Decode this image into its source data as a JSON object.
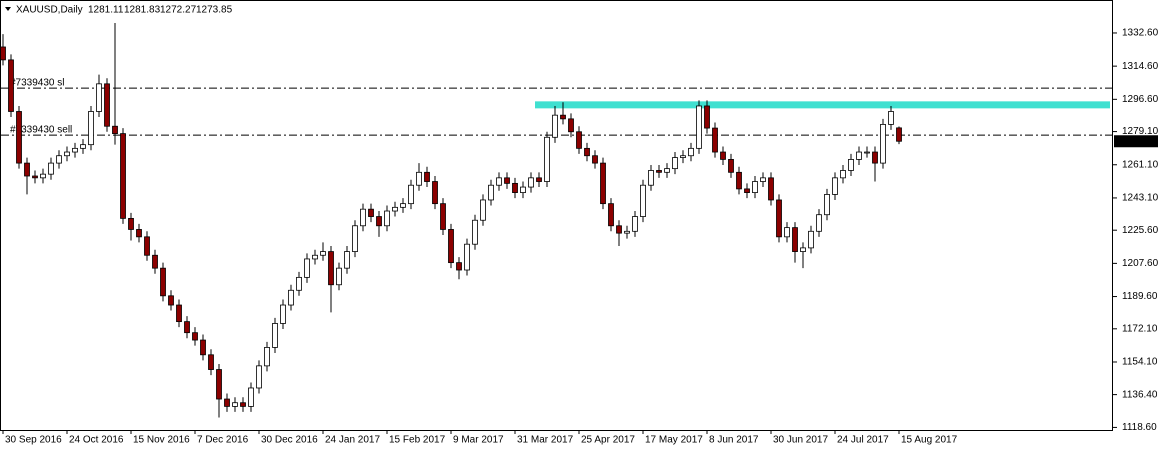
{
  "chart_data": {
    "type": "candlestick",
    "symbol": "XAUUSD,Daily",
    "open": [
      1325,
      1318,
      1290,
      1262,
      1255,
      1254,
      1256,
      1262,
      1266,
      1268,
      1270,
      1272,
      1290,
      1305,
      1282,
      1278,
      1232,
      1226,
      1222,
      1212,
      1205,
      1190,
      1185,
      1176,
      1170,
      1166,
      1158,
      1150,
      1134,
      1130,
      1132,
      1130,
      1140,
      1152,
      1162,
      1175,
      1185,
      1193,
      1200,
      1210,
      1212,
      1214,
      1196,
      1205,
      1214,
      1228,
      1237,
      1233,
      1228,
      1236,
      1238,
      1240,
      1250,
      1257,
      1252,
      1240,
      1226,
      1208,
      1204,
      1218,
      1231,
      1242,
      1250,
      1254,
      1251,
      1246,
      1249,
      1254,
      1252,
      1276,
      1288,
      1286,
      1279,
      1270,
      1266,
      1262,
      1240,
      1228,
      1224,
      1225,
      1233,
      1250,
      1258,
      1257,
      1259,
      1265,
      1266,
      1270,
      1293,
      1281,
      1268,
      1264,
      1257,
      1248,
      1246,
      1252,
      1254,
      1242,
      1222,
      1227,
      1214,
      1216,
      1225,
      1234,
      1245,
      1254,
      1258,
      1264,
      1268,
      1268,
      1262,
      1283,
      1281.11
    ],
    "high": [
      1332,
      1321,
      1293,
      1265,
      1258,
      1259,
      1265,
      1269,
      1271,
      1273,
      1275,
      1293,
      1310,
      1308,
      1338,
      1281,
      1235,
      1229,
      1225,
      1215,
      1208,
      1193,
      1188,
      1179,
      1173,
      1169,
      1161,
      1153,
      1137,
      1135,
      1135,
      1143,
      1155,
      1165,
      1178,
      1188,
      1196,
      1203,
      1213,
      1215,
      1219,
      1217,
      1208,
      1217,
      1231,
      1240,
      1240,
      1236,
      1239,
      1241,
      1243,
      1253,
      1262,
      1260,
      1255,
      1243,
      1229,
      1211,
      1221,
      1234,
      1245,
      1253,
      1257,
      1257,
      1254,
      1252,
      1257,
      1257,
      1279,
      1293,
      1295,
      1289,
      1282,
      1273,
      1269,
      1265,
      1243,
      1231,
      1228,
      1236,
      1253,
      1261,
      1261,
      1262,
      1268,
      1269,
      1273,
      1296,
      1296,
      1284,
      1271,
      1267,
      1260,
      1251,
      1255,
      1257,
      1257,
      1245,
      1230,
      1230,
      1219,
      1228,
      1237,
      1248,
      1257,
      1261,
      1267,
      1271,
      1271,
      1271,
      1286,
      1293,
      1281.83
    ],
    "low": [
      1315,
      1287,
      1259,
      1245,
      1251,
      1251,
      1253,
      1259,
      1263,
      1265,
      1267,
      1269,
      1287,
      1279,
      1272,
      1229,
      1220,
      1219,
      1209,
      1202,
      1187,
      1182,
      1173,
      1167,
      1163,
      1155,
      1147,
      1124,
      1127,
      1127,
      1127,
      1127,
      1137,
      1149,
      1159,
      1172,
      1182,
      1190,
      1197,
      1207,
      1209,
      1181,
      1193,
      1202,
      1211,
      1225,
      1230,
      1222,
      1225,
      1233,
      1235,
      1237,
      1247,
      1249,
      1237,
      1223,
      1205,
      1199,
      1201,
      1215,
      1228,
      1239,
      1247,
      1248,
      1243,
      1243,
      1246,
      1249,
      1249,
      1273,
      1283,
      1276,
      1267,
      1263,
      1259,
      1237,
      1225,
      1217,
      1221,
      1222,
      1230,
      1247,
      1254,
      1254,
      1256,
      1262,
      1263,
      1267,
      1278,
      1265,
      1261,
      1254,
      1245,
      1243,
      1243,
      1249,
      1239,
      1219,
      1219,
      1208,
      1205,
      1213,
      1222,
      1231,
      1242,
      1251,
      1255,
      1261,
      1265,
      1252,
      1259,
      1280,
      1272.27
    ],
    "close": [
      1318,
      1290,
      1262,
      1255,
      1254,
      1256,
      1262,
      1266,
      1268,
      1270,
      1272,
      1290,
      1305,
      1282,
      1278,
      1232,
      1226,
      1222,
      1212,
      1205,
      1190,
      1185,
      1176,
      1170,
      1166,
      1158,
      1150,
      1134,
      1130,
      1132,
      1130,
      1140,
      1152,
      1162,
      1175,
      1185,
      1193,
      1200,
      1210,
      1212,
      1214,
      1196,
      1205,
      1214,
      1228,
      1237,
      1233,
      1228,
      1236,
      1238,
      1240,
      1250,
      1257,
      1252,
      1240,
      1226,
      1208,
      1204,
      1218,
      1231,
      1242,
      1250,
      1254,
      1251,
      1246,
      1249,
      1254,
      1252,
      1276,
      1288,
      1286,
      1279,
      1270,
      1266,
      1262,
      1240,
      1228,
      1224,
      1225,
      1233,
      1250,
      1258,
      1257,
      1259,
      1265,
      1266,
      1270,
      1293,
      1281,
      1268,
      1264,
      1257,
      1248,
      1246,
      1252,
      1254,
      1242,
      1222,
      1227,
      1214,
      1216,
      1225,
      1234,
      1245,
      1254,
      1258,
      1264,
      1268,
      1268,
      1262,
      1283,
      1290,
      1273.85
    ],
    "up_color": "#ffffff",
    "down_color": "#8b0000",
    "outline_color": "#000000",
    "xlim": [
      0,
      112
    ],
    "xticks": [
      {
        "value": 0,
        "label": "30 Sep 2016"
      },
      {
        "value": 8,
        "label": "24 Oct 2016"
      },
      {
        "value": 16,
        "label": "15 Nov 2016"
      },
      {
        "value": 24,
        "label": "7 Dec 2016"
      },
      {
        "value": 32,
        "label": "30 Dec 2016"
      },
      {
        "value": 40,
        "label": "24 Jan 2017"
      },
      {
        "value": 48,
        "label": "15 Feb 2017"
      },
      {
        "value": 56,
        "label": "9 Mar 2017"
      },
      {
        "value": 64,
        "label": "31 Mar 2017"
      },
      {
        "value": 72,
        "label": "25 Apr 2017"
      },
      {
        "value": 80,
        "label": "17 May 2017"
      },
      {
        "value": 88,
        "label": "8 Jun 2017"
      },
      {
        "value": 96,
        "label": "30 Jun 2017"
      },
      {
        "value": 104,
        "label": "24 Jul 2017"
      },
      {
        "value": 112,
        "label": "15 Aug 2017"
      }
    ],
    "ylim": [
      1117.2,
      1349.4
    ],
    "yticks": [
      {
        "value": 1118.6,
        "label": "1118.60"
      },
      {
        "value": 1136.4,
        "label": "1136.40"
      },
      {
        "value": 1154.1,
        "label": "1154.10"
      },
      {
        "value": 1172.1,
        "label": "1172.10"
      },
      {
        "value": 1189.6,
        "label": "1189.60"
      },
      {
        "value": 1207.6,
        "label": "1207.60"
      },
      {
        "value": 1225.6,
        "label": "1225.60"
      },
      {
        "value": 1243.1,
        "label": "1243.10"
      },
      {
        "value": 1261.1,
        "label": "1261.10"
      },
      {
        "value": 1279.1,
        "label": "1279.10"
      },
      {
        "value": 1296.6,
        "label": "1296.60"
      },
      {
        "value": 1314.6,
        "label": "1314.60"
      },
      {
        "value": 1332.6,
        "label": "1332.60"
      }
    ],
    "hlines": [
      {
        "label": "#7339430 sl",
        "value": 1302.7
      },
      {
        "label": "#7339430 sell",
        "value": 1277.2
      }
    ],
    "zone": {
      "from": 1291.7,
      "to": 1295.5,
      "color": "#40e0d0"
    }
  }
}
